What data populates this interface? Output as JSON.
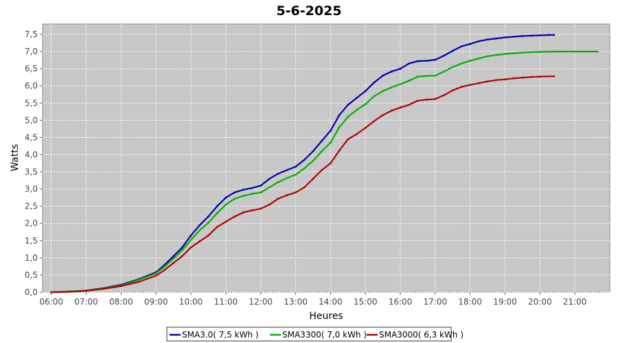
{
  "chart_data": {
    "type": "line",
    "title": "5-6-2025",
    "xlabel": "Heures",
    "ylabel": "Watts",
    "xlim": [
      5.75,
      22.0
    ],
    "ylim": [
      0,
      7.8
    ],
    "grid": true,
    "legend_position": "bottom",
    "x_ticks": [
      6,
      7,
      8,
      9,
      10,
      11,
      12,
      13,
      14,
      15,
      16,
      17,
      18,
      19,
      20,
      21
    ],
    "x_tick_labels": [
      "06:00",
      "07:00",
      "08:00",
      "09:00",
      "10:00",
      "11:00",
      "12:00",
      "13:00",
      "14:00",
      "15:00",
      "16:00",
      "17:00",
      "18:00",
      "19:00",
      "20:00",
      "21:00"
    ],
    "y_ticks": [
      0,
      0.5,
      1,
      1.5,
      2,
      2.5,
      3,
      3.5,
      4,
      4.5,
      5,
      5.5,
      6,
      6.5,
      7,
      7.5
    ],
    "y_tick_labels": [
      "0,0",
      "0,5",
      "1,0",
      "1,5",
      "2,0",
      "2,5",
      "3,0",
      "3,5",
      "4,0",
      "4,5",
      "5,0",
      "5,5",
      "6,0",
      "6,5",
      "7,0",
      "7,5"
    ],
    "series": [
      {
        "name": "SMA3.0( 7,5 kWh )",
        "color": "#0000aa",
        "x": [
          6.0,
          6.5,
          7.0,
          7.5,
          8.0,
          8.5,
          9.0,
          9.25,
          9.5,
          9.75,
          10.0,
          10.25,
          10.5,
          10.75,
          11.0,
          11.25,
          11.5,
          11.75,
          12.0,
          12.25,
          12.5,
          12.75,
          13.0,
          13.25,
          13.5,
          13.75,
          14.0,
          14.25,
          14.5,
          14.75,
          15.0,
          15.25,
          15.5,
          15.75,
          16.0,
          16.25,
          16.5,
          16.75,
          17.0,
          17.25,
          17.5,
          17.75,
          18.0,
          18.25,
          18.5,
          18.75,
          19.0,
          19.25,
          19.5,
          19.75,
          20.0,
          20.25,
          20.4
        ],
        "values": [
          0.0,
          0.02,
          0.05,
          0.12,
          0.22,
          0.38,
          0.58,
          0.8,
          1.05,
          1.3,
          1.65,
          1.95,
          2.2,
          2.5,
          2.75,
          2.9,
          2.98,
          3.03,
          3.1,
          3.3,
          3.45,
          3.55,
          3.65,
          3.85,
          4.1,
          4.4,
          4.7,
          5.15,
          5.45,
          5.65,
          5.85,
          6.1,
          6.3,
          6.42,
          6.5,
          6.65,
          6.72,
          6.73,
          6.76,
          6.88,
          7.02,
          7.15,
          7.22,
          7.3,
          7.35,
          7.38,
          7.41,
          7.43,
          7.45,
          7.46,
          7.47,
          7.48,
          7.48
        ]
      },
      {
        "name": "SMA3300( 7,0 kWh )",
        "color": "#00b000",
        "x": [
          6.0,
          6.5,
          7.0,
          7.5,
          8.0,
          8.5,
          9.0,
          9.25,
          9.5,
          9.75,
          10.0,
          10.25,
          10.5,
          10.75,
          11.0,
          11.25,
          11.5,
          11.75,
          12.0,
          12.25,
          12.5,
          12.75,
          13.0,
          13.25,
          13.5,
          13.75,
          14.0,
          14.25,
          14.5,
          14.75,
          15.0,
          15.25,
          15.5,
          15.75,
          16.0,
          16.25,
          16.5,
          16.75,
          17.0,
          17.25,
          17.5,
          17.75,
          18.0,
          18.25,
          18.5,
          18.75,
          19.0,
          19.25,
          19.5,
          19.75,
          20.0,
          20.5,
          21.0,
          21.65
        ],
        "values": [
          0.0,
          0.02,
          0.05,
          0.11,
          0.2,
          0.36,
          0.55,
          0.75,
          0.98,
          1.22,
          1.52,
          1.8,
          2.02,
          2.3,
          2.55,
          2.72,
          2.8,
          2.86,
          2.9,
          3.05,
          3.2,
          3.32,
          3.42,
          3.6,
          3.82,
          4.1,
          4.35,
          4.8,
          5.1,
          5.3,
          5.47,
          5.7,
          5.85,
          5.96,
          6.05,
          6.15,
          6.27,
          6.29,
          6.3,
          6.42,
          6.55,
          6.65,
          6.73,
          6.8,
          6.86,
          6.9,
          6.93,
          6.95,
          6.97,
          6.98,
          6.99,
          7.0,
          7.0,
          7.0
        ]
      },
      {
        "name": "SMA3000( 6,3 kWh )",
        "color": "#b00000",
        "x": [
          6.0,
          6.5,
          7.0,
          7.5,
          8.0,
          8.5,
          9.0,
          9.25,
          9.5,
          9.75,
          10.0,
          10.25,
          10.5,
          10.75,
          11.0,
          11.25,
          11.5,
          11.75,
          12.0,
          12.25,
          12.5,
          12.75,
          13.0,
          13.25,
          13.5,
          13.75,
          14.0,
          14.25,
          14.5,
          14.75,
          15.0,
          15.25,
          15.5,
          15.75,
          16.0,
          16.25,
          16.5,
          16.75,
          17.0,
          17.25,
          17.5,
          17.75,
          18.0,
          18.25,
          18.5,
          18.75,
          19.0,
          19.25,
          19.5,
          19.75,
          20.0,
          20.4
        ],
        "values": [
          0.0,
          0.01,
          0.04,
          0.1,
          0.18,
          0.3,
          0.48,
          0.65,
          0.85,
          1.05,
          1.3,
          1.48,
          1.65,
          1.9,
          2.05,
          2.2,
          2.32,
          2.38,
          2.43,
          2.55,
          2.72,
          2.82,
          2.9,
          3.05,
          3.3,
          3.55,
          3.75,
          4.12,
          4.45,
          4.6,
          4.78,
          4.98,
          5.15,
          5.28,
          5.37,
          5.45,
          5.57,
          5.6,
          5.62,
          5.73,
          5.87,
          5.97,
          6.03,
          6.08,
          6.13,
          6.17,
          6.19,
          6.22,
          6.24,
          6.26,
          6.27,
          6.28
        ]
      }
    ]
  }
}
